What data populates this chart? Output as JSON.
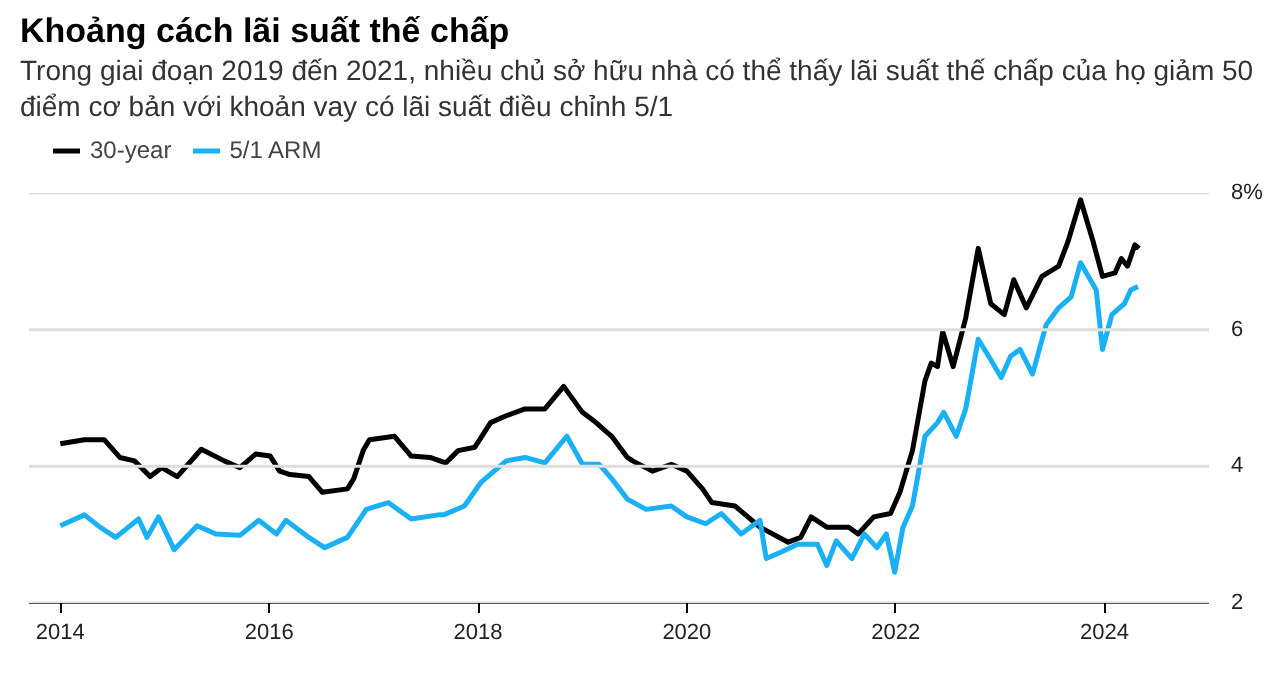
{
  "chart_data": {
    "type": "line",
    "title": "Khoảng cách lãi suất thế chấp",
    "subtitle": "Trong giai đoạn 2019 đến 2021, nhiều chủ sở hữu nhà có thể thấy lãi suất thế chấp của họ giảm 50 điểm cơ bản với khoản vay có lãi suất điều chỉnh 5/1",
    "series": [
      {
        "name": "30-year",
        "color": "#000000",
        "x": [
          2014.0,
          2014.23,
          2014.42,
          2014.57,
          2014.71,
          2014.86,
          2014.97,
          2015.12,
          2015.35,
          2015.57,
          2015.72,
          2015.87,
          2016.01,
          2016.1,
          2016.2,
          2016.38,
          2016.51,
          2016.75,
          2016.81,
          2016.9,
          2016.96,
          2017.2,
          2017.36,
          2017.54,
          2017.69,
          2017.81,
          2017.97,
          2018.12,
          2018.27,
          2018.45,
          2018.64,
          2018.82,
          2019.0,
          2019.13,
          2019.28,
          2019.43,
          2019.48,
          2019.67,
          2019.85,
          2020.0,
          2020.15,
          2020.24,
          2020.46,
          2020.7,
          2020.97,
          2021.09,
          2021.19,
          2021.34,
          2021.55,
          2021.64,
          2021.79,
          2021.95,
          2022.04,
          2022.16,
          2022.28,
          2022.34,
          2022.4,
          2022.45,
          2022.55,
          2022.67,
          2022.79,
          2022.91,
          2023.04,
          2023.13,
          2023.25,
          2023.4,
          2023.56,
          2023.65,
          2023.77,
          2023.89,
          2023.98,
          2024.1,
          2024.16,
          2024.22,
          2024.29,
          2024.33
        ],
        "values": [
          4.33,
          4.39,
          4.39,
          4.13,
          4.08,
          3.85,
          3.98,
          3.85,
          4.25,
          4.08,
          3.98,
          4.18,
          4.15,
          3.93,
          3.88,
          3.85,
          3.62,
          3.67,
          3.82,
          4.23,
          4.39,
          4.44,
          4.15,
          4.13,
          4.05,
          4.23,
          4.28,
          4.64,
          4.74,
          4.84,
          4.84,
          5.17,
          4.79,
          4.64,
          4.44,
          4.13,
          4.08,
          3.93,
          4.03,
          3.93,
          3.67,
          3.47,
          3.42,
          3.11,
          2.89,
          2.96,
          3.26,
          3.11,
          3.11,
          3.01,
          3.26,
          3.31,
          3.62,
          4.23,
          5.25,
          5.51,
          5.46,
          5.97,
          5.46,
          6.17,
          7.19,
          6.38,
          6.22,
          6.73,
          6.32,
          6.78,
          6.93,
          7.29,
          7.9,
          7.29,
          6.78,
          6.83,
          7.04,
          6.93,
          7.24,
          7.19
        ]
      },
      {
        "name": "5/1 ARM",
        "color": "#1ab0f5",
        "x": [
          2014.0,
          2014.23,
          2014.38,
          2014.53,
          2014.75,
          2014.83,
          2014.94,
          2015.09,
          2015.31,
          2015.49,
          2015.72,
          2015.9,
          2016.07,
          2016.16,
          2016.38,
          2016.53,
          2016.75,
          2016.93,
          2017.14,
          2017.36,
          2017.62,
          2017.67,
          2017.87,
          2018.03,
          2018.27,
          2018.45,
          2018.64,
          2018.85,
          2019.0,
          2019.16,
          2019.28,
          2019.43,
          2019.61,
          2019.85,
          2020.0,
          2020.18,
          2020.33,
          2020.52,
          2020.7,
          2020.76,
          2020.91,
          2021.06,
          2021.25,
          2021.34,
          2021.43,
          2021.58,
          2021.7,
          2021.82,
          2021.91,
          2021.99,
          2022.07,
          2022.16,
          2022.28,
          2022.4,
          2022.46,
          2022.58,
          2022.67,
          2022.79,
          2022.91,
          2023.01,
          2023.1,
          2023.19,
          2023.31,
          2023.44,
          2023.56,
          2023.68,
          2023.77,
          2023.92,
          2023.98,
          2024.07,
          2024.19,
          2024.25,
          2024.32
        ],
        "values": [
          3.13,
          3.29,
          3.11,
          2.96,
          3.23,
          2.96,
          3.26,
          2.78,
          3.13,
          3.01,
          2.99,
          3.21,
          3.01,
          3.21,
          2.96,
          2.81,
          2.96,
          3.37,
          3.47,
          3.23,
          3.29,
          3.29,
          3.42,
          3.77,
          4.08,
          4.13,
          4.05,
          4.44,
          4.03,
          4.03,
          3.82,
          3.52,
          3.37,
          3.42,
          3.26,
          3.16,
          3.31,
          3.01,
          3.21,
          2.65,
          2.75,
          2.86,
          2.86,
          2.55,
          2.91,
          2.65,
          3.01,
          2.81,
          3.01,
          2.45,
          3.11,
          3.42,
          4.44,
          4.64,
          4.79,
          4.44,
          4.84,
          5.86,
          5.56,
          5.3,
          5.61,
          5.71,
          5.35,
          6.07,
          6.32,
          6.48,
          6.98,
          6.58,
          5.71,
          6.22,
          6.38,
          6.58,
          6.63
        ]
      }
    ],
    "xlim": [
      2013.7,
      2025.0
    ],
    "ylim": [
      2,
      8
    ],
    "xticks": [
      2014,
      2016,
      2018,
      2020,
      2022,
      2024
    ],
    "yticks": [
      2,
      4,
      6,
      {
        "value": 8,
        "label": "8%"
      }
    ],
    "grid": "y",
    "legend": "top left",
    "marker": "none",
    "line_style": "solid"
  }
}
